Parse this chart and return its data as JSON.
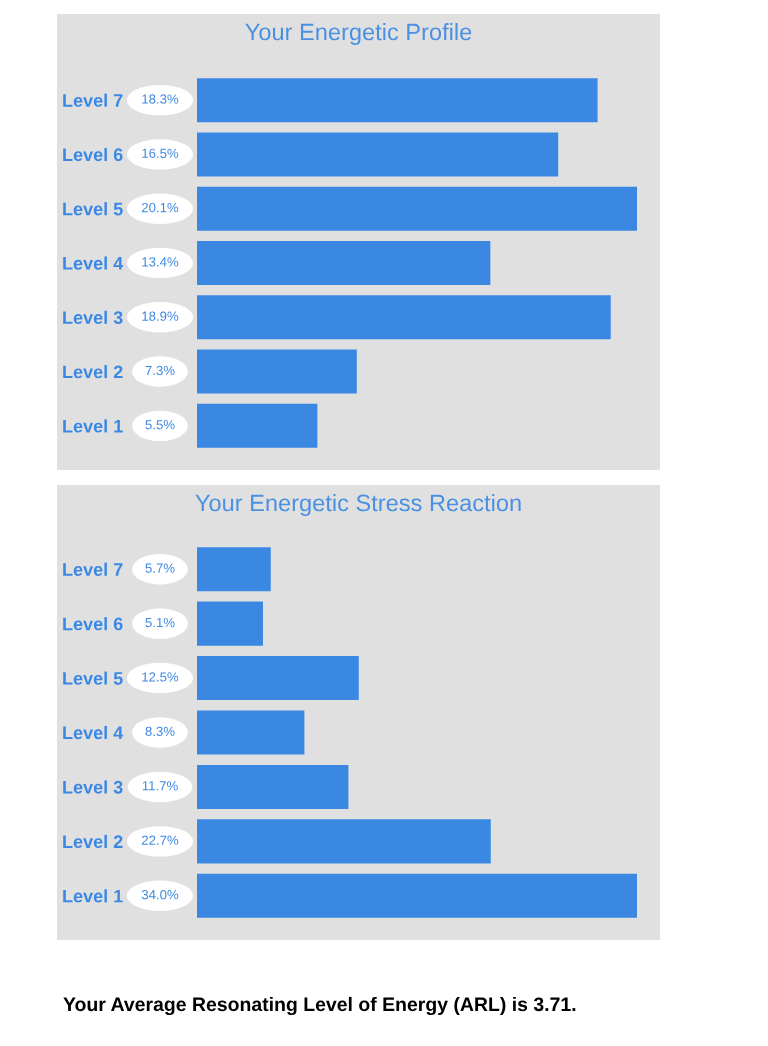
{
  "chart_data": [
    {
      "type": "bar",
      "orientation": "horizontal",
      "title": "Your Energetic Profile",
      "color": "#3b88e3",
      "categories": [
        "Level 7",
        "Level 6",
        "Level 5",
        "Level 4",
        "Level 3",
        "Level 2",
        "Level 1"
      ],
      "values": [
        18.3,
        16.5,
        20.1,
        13.4,
        18.9,
        7.3,
        5.5
      ],
      "value_labels": [
        "18.3%",
        "16.5%",
        "20.1%",
        "13.4%",
        "18.9%",
        "7.3%",
        "5.5%"
      ]
    },
    {
      "type": "bar",
      "orientation": "horizontal",
      "title": "Your Energetic Stress Reaction",
      "color": "#3b88e3",
      "categories": [
        "Level 7",
        "Level 6",
        "Level 5",
        "Level 4",
        "Level 3",
        "Level 2",
        "Level 1"
      ],
      "values": [
        5.7,
        5.1,
        12.5,
        8.3,
        11.7,
        22.7,
        34.0
      ],
      "value_labels": [
        "5.7%",
        "5.1%",
        "12.5%",
        "8.3%",
        "11.7%",
        "22.7%",
        "34.0%"
      ],
      "annotations": [
        "Your Average Resonating Level of Energy (ARL) is 3.71."
      ]
    }
  ]
}
